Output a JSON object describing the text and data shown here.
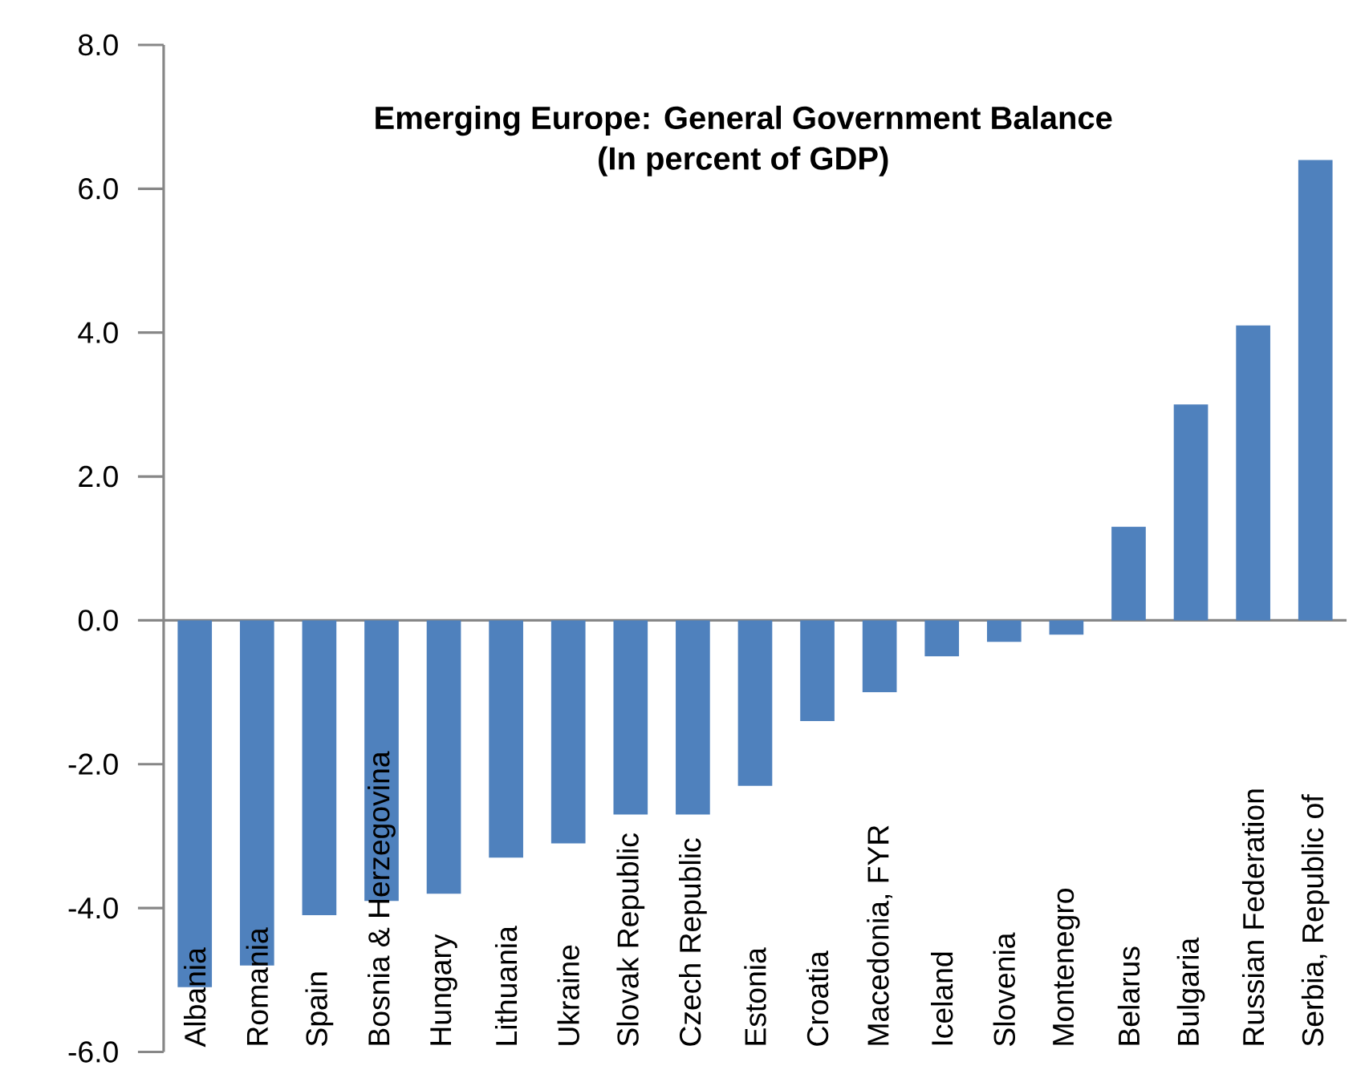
{
  "chart_data": {
    "type": "bar",
    "title": "Emerging Europe: General Government Balance",
    "subtitle": "(In percent of GDP)",
    "categories": [
      "Albania",
      "Romania",
      "Spain",
      "Bosnia & Herzegovina",
      "Hungary",
      "Lithuania",
      "Ukraine",
      "Slovak Republic",
      "Czech Republic",
      "Estonia",
      "Croatia",
      "Macedonia, FYR",
      "Iceland",
      "Slovenia",
      "Montenegro",
      "Belarus",
      "Bulgaria",
      "Russian Federation",
      "Serbia, Republic of"
    ],
    "values": [
      -5.1,
      -4.8,
      -4.1,
      -3.9,
      -3.8,
      -3.3,
      -3.1,
      -2.7,
      -2.7,
      -2.3,
      -1.4,
      -1.0,
      -0.5,
      -0.3,
      -0.2,
      1.3,
      3.0,
      4.1,
      6.4
    ],
    "color": "#4f81bd",
    "ylim": [
      -6,
      8
    ],
    "yticks": [
      {
        "value": -6,
        "label": "-6.0"
      },
      {
        "value": -4,
        "label": "-4.0"
      },
      {
        "value": -2,
        "label": "-2.0"
      },
      {
        "value": 0,
        "label": "0.0"
      },
      {
        "value": 2,
        "label": "2.0"
      },
      {
        "value": 4,
        "label": "4.0"
      },
      {
        "value": 6,
        "label": "6.0"
      },
      {
        "value": 8,
        "label": "8.0"
      }
    ]
  }
}
